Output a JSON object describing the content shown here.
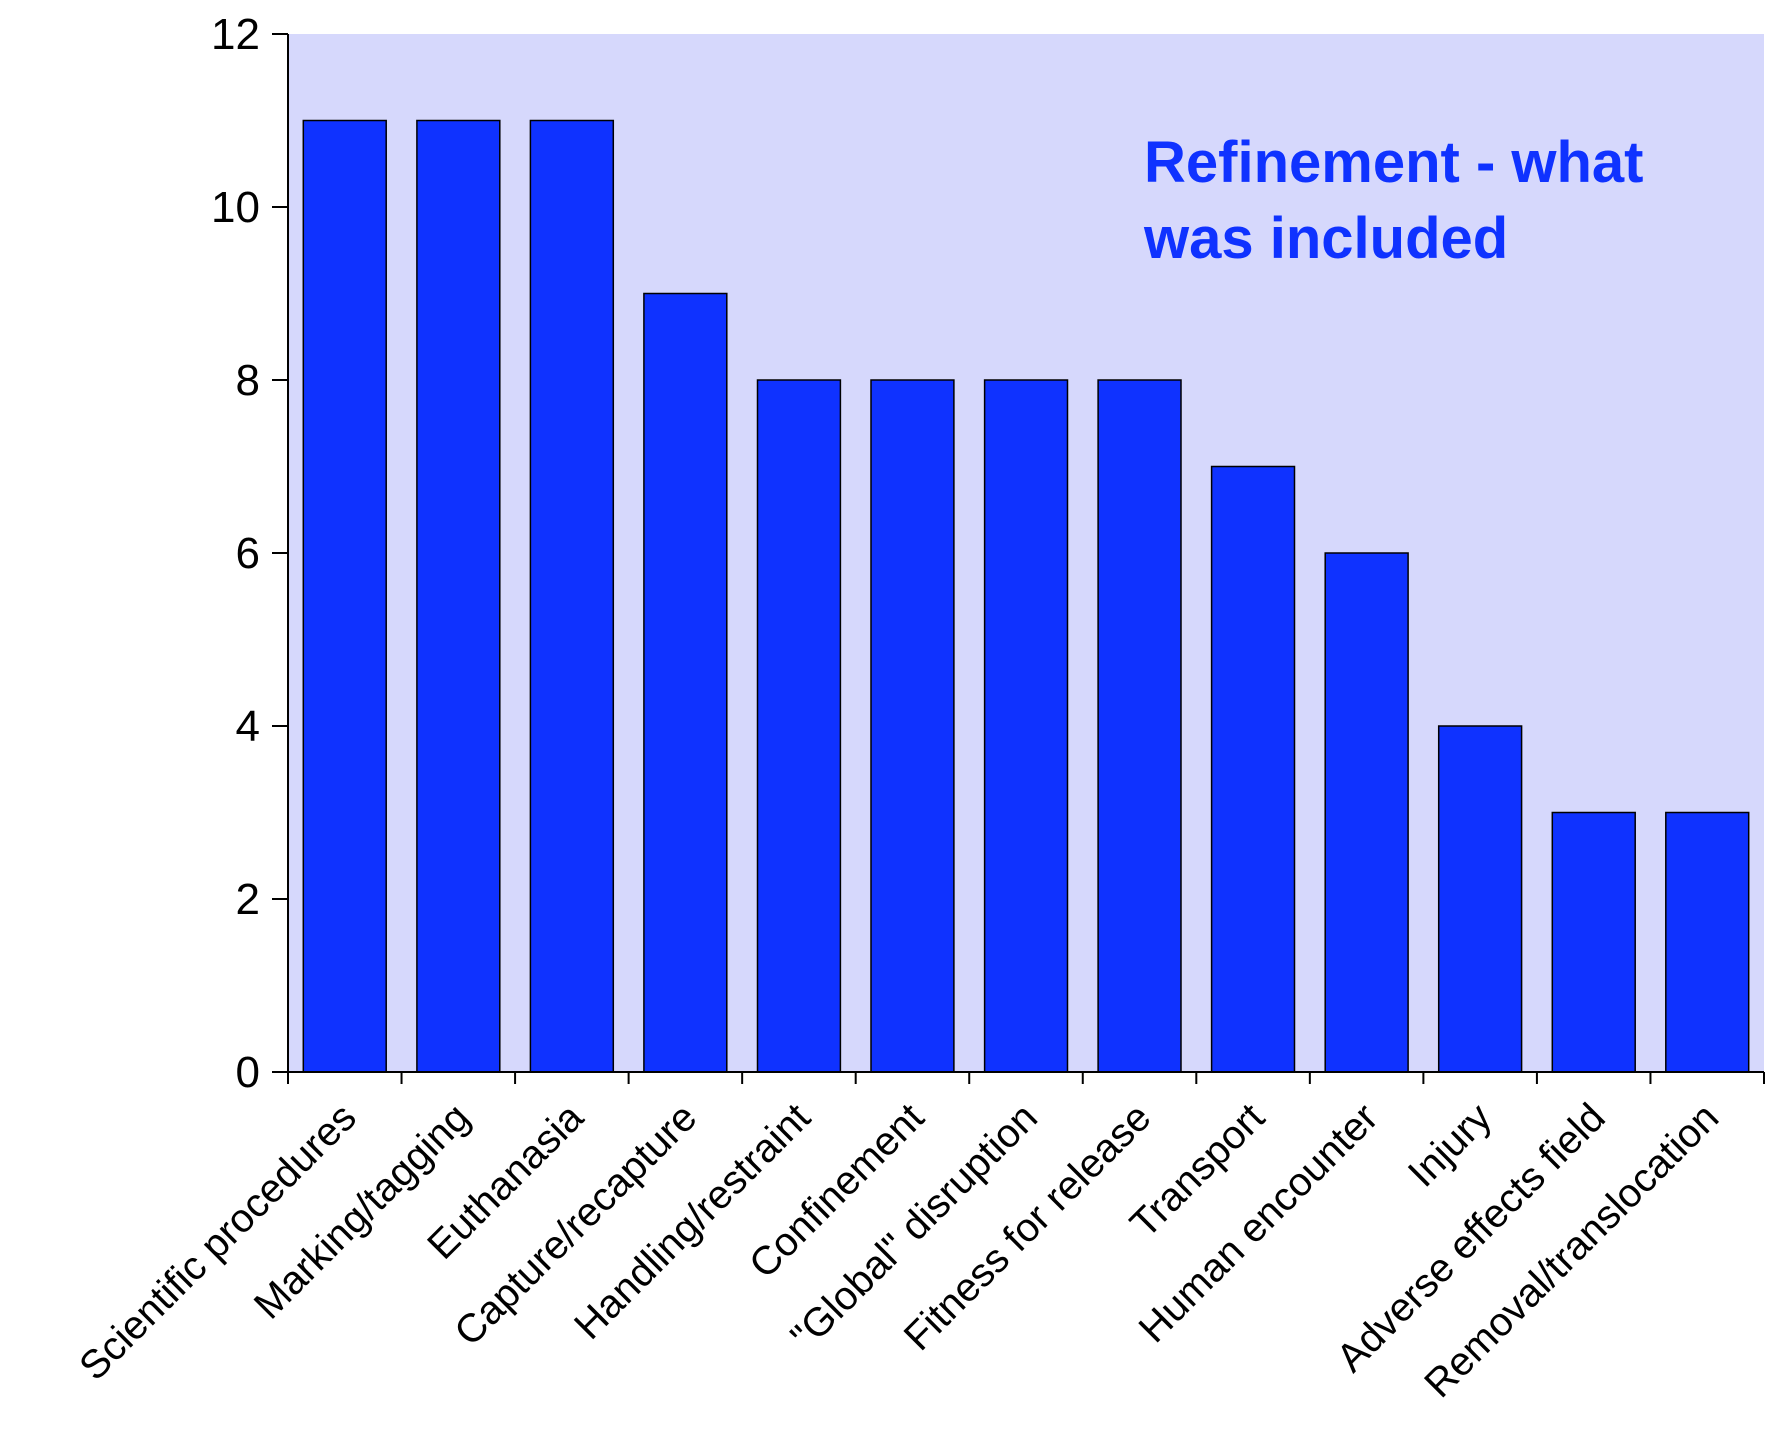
{
  "chart_data": {
    "type": "bar",
    "title": "",
    "xlabel": "",
    "ylabel": "",
    "categories": [
      "Scientific procedures",
      "Marking/tagging",
      "Euthanasia",
      "Capture/recapture",
      "Handling/restraint",
      "Confinement",
      "\"Global\" disruption",
      "Fitness for release",
      "Transport",
      "Human encounter",
      "Injury",
      "Adverse effects field",
      "Removal/translocation"
    ],
    "values": [
      11,
      11,
      11,
      9,
      8,
      8,
      8,
      8,
      7,
      6,
      4,
      3,
      3
    ],
    "ylim": [
      0,
      12
    ],
    "yticks": [
      "0",
      "2",
      "4",
      "6",
      "8",
      "10",
      "12"
    ],
    "annotation": [
      "Refinement - what",
      "was included"
    ],
    "grid": false,
    "legend": "none",
    "colors": {
      "bar": "#0f32ff",
      "plot_background": "#d6d8fc",
      "annotation": "#0f32ff",
      "axis": "#000000"
    }
  }
}
